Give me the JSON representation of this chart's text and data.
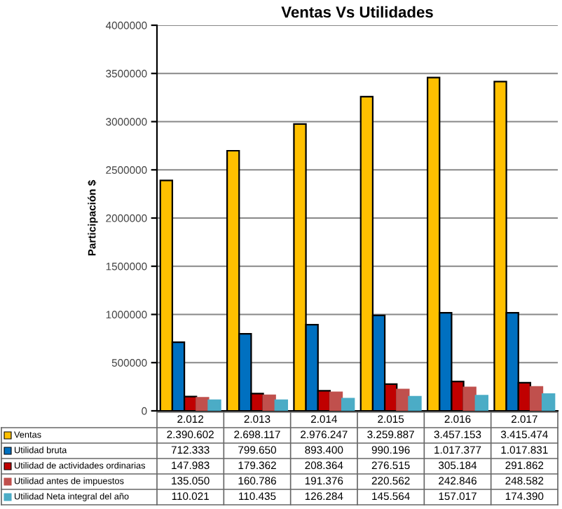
{
  "chart_data": {
    "type": "bar",
    "title": "Ventas Vs Utilidades",
    "ylabel": "Participación $",
    "categories": [
      "2.012",
      "2.013",
      "2.014",
      "2.015",
      "2.016",
      "2.017"
    ],
    "series": [
      {
        "name": "Ventas",
        "color": "#ffc000",
        "values": [
          2390602,
          2698117,
          2976247,
          3259887,
          3457153,
          3415474
        ],
        "value_labels": [
          "2.390.602",
          "2.698.117",
          "2.976.247",
          "3.259.887",
          "3.457.153",
          "3.415.474"
        ]
      },
      {
        "name": "Utilidad bruta",
        "color": "#0070c0",
        "values": [
          712333,
          799650,
          893400,
          990196,
          1017377,
          1017831
        ],
        "value_labels": [
          "712.333",
          "799.650",
          "893.400",
          "990.196",
          "1.017.377",
          "1.017.831"
        ]
      },
      {
        "name": "Utilidad de actividades ordinarias",
        "color": "#c00000",
        "values": [
          147983,
          179362,
          208364,
          276515,
          305184,
          291862
        ],
        "value_labels": [
          "147.983",
          "179.362",
          "208.364",
          "276.515",
          "305.184",
          "291.862"
        ]
      },
      {
        "name": "Utilidad antes de impuestos",
        "color": "#c0504d",
        "values": [
          135050,
          160786,
          191376,
          220562,
          242846,
          248582
        ],
        "value_labels": [
          "135.050",
          "160.786",
          "191.376",
          "220.562",
          "242.846",
          "248.582"
        ]
      },
      {
        "name": "Utilidad Neta integral del año",
        "color": "#4bacc6",
        "values": [
          110021,
          110435,
          126284,
          145564,
          157017,
          174390
        ],
        "value_labels": [
          "110.021",
          "110.435",
          "126.284",
          "145.564",
          "157.017",
          "174.390"
        ]
      }
    ],
    "ylim": [
      0,
      4000000
    ],
    "yticks": [
      0,
      500000,
      1000000,
      1500000,
      2000000,
      2500000,
      3000000,
      3500000,
      4000000
    ],
    "grid": "y",
    "legend": "bottom"
  }
}
